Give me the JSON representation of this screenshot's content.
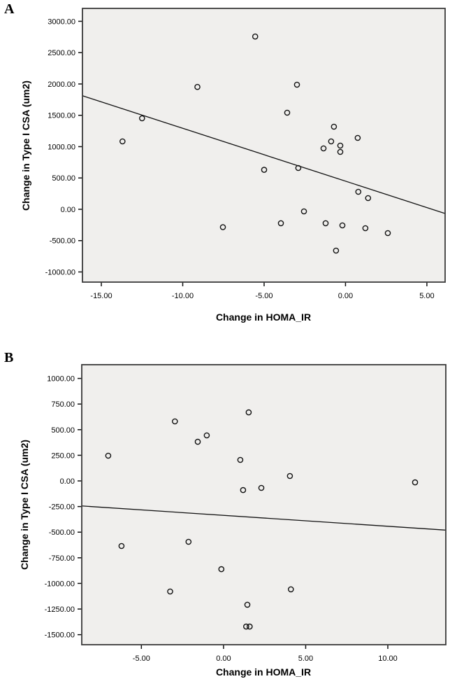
{
  "figure": {
    "panels": [
      {
        "letter": "A"
      },
      {
        "letter": "B"
      }
    ]
  },
  "colors": {
    "page_bg": "#ffffff",
    "plot_bg": "#f0efed",
    "frame": "#3a3a3a",
    "ink": "#111111"
  },
  "chart_data": [
    {
      "type": "scatter",
      "panel": "A",
      "title": "",
      "xlabel": "Change in HOMA_IR",
      "ylabel": "Change in Type I CSA (um2)",
      "xlim": [
        -16.16,
        6.12
      ],
      "ylim": [
        -1162,
        3206
      ],
      "xticks": [
        -15,
        -10,
        -5,
        0,
        5
      ],
      "yticks": [
        3000,
        2500,
        2000,
        1500,
        1000,
        500,
        0,
        -500,
        -1000
      ],
      "tick_label_format": "fixed2",
      "grid": false,
      "legend": "none",
      "marker": "open-circle",
      "points": [
        [
          -13.7,
          1083
        ],
        [
          -12.5,
          1452
        ],
        [
          -9.1,
          1953
        ],
        [
          -5.55,
          2757
        ],
        [
          -2.98,
          1988
        ],
        [
          -3.58,
          1541
        ],
        [
          -0.71,
          1318
        ],
        [
          0.75,
          1139
        ],
        [
          -0.88,
          1083
        ],
        [
          -1.35,
          972
        ],
        [
          -0.32,
          1016
        ],
        [
          -0.32,
          916
        ],
        [
          -2.9,
          659
        ],
        [
          -5.0,
          630
        ],
        [
          0.79,
          279
        ],
        [
          1.39,
          179
        ],
        [
          -2.55,
          -34
        ],
        [
          -3.97,
          -223
        ],
        [
          -7.53,
          -285
        ],
        [
          -1.22,
          -223
        ],
        [
          -0.19,
          -257
        ],
        [
          1.22,
          -302
        ],
        [
          2.6,
          -380
        ],
        [
          -0.58,
          -659
        ]
      ],
      "fit_line": {
        "x1": -16.16,
        "y1": 1812,
        "x2": 6.12,
        "y2": -67
      }
    },
    {
      "type": "scatter",
      "panel": "B",
      "title": "",
      "xlabel": "Change in HOMA_IR",
      "ylabel": "Change in Type I CSA (um2)",
      "xlim": [
        -8.63,
        13.53
      ],
      "ylim": [
        -1598,
        1134
      ],
      "xticks": [
        -5,
        0,
        5,
        10
      ],
      "yticks": [
        1000,
        750,
        500,
        250,
        0,
        -250,
        -500,
        -750,
        -1000,
        -1250,
        -1500
      ],
      "tick_label_format": "fixed2",
      "grid": false,
      "legend": "none",
      "marker": "open-circle",
      "points": [
        [
          -7.02,
          246
        ],
        [
          -2.96,
          581
        ],
        [
          -1.57,
          382
        ],
        [
          -1.02,
          444
        ],
        [
          1.53,
          669
        ],
        [
          1.02,
          205
        ],
        [
          1.19,
          -89
        ],
        [
          2.3,
          -68
        ],
        [
          4.04,
          48
        ],
        [
          11.66,
          -14
        ],
        [
          -6.21,
          -635
        ],
        [
          -2.13,
          -594
        ],
        [
          -0.13,
          -861
        ],
        [
          -3.25,
          -1079
        ],
        [
          4.1,
          -1058
        ],
        [
          1.45,
          -1208
        ],
        [
          1.38,
          -1421
        ],
        [
          1.59,
          -1421
        ]
      ],
      "fit_line": {
        "x1": -8.63,
        "y1": -244,
        "x2": 13.53,
        "y2": -480
      }
    }
  ]
}
